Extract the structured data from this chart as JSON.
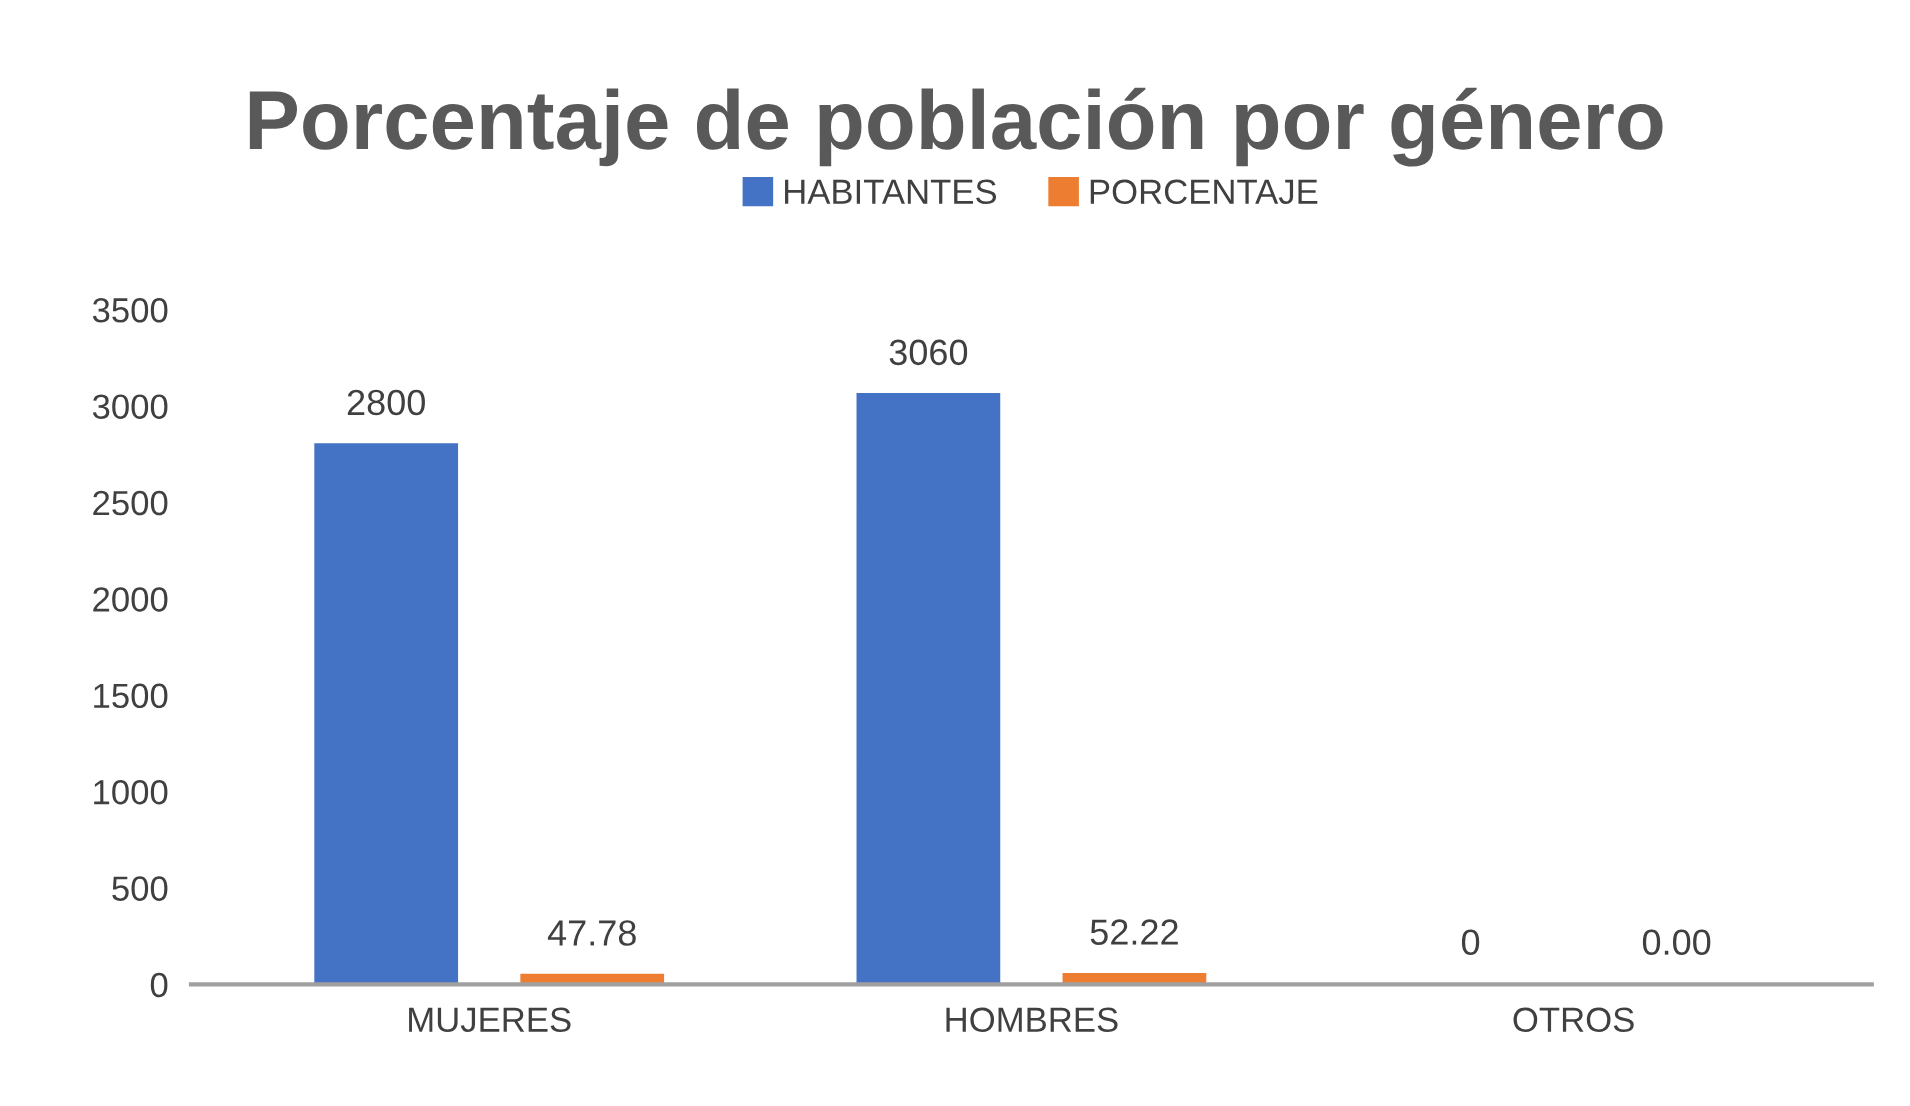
{
  "chart_data": {
    "type": "bar",
    "title": "Porcentaje de población por género",
    "categories": [
      "MUJERES",
      "HOMBRES",
      "OTROS"
    ],
    "series": [
      {
        "name": "HABITANTES",
        "color": "#4472c4",
        "values": [
          2800,
          3060,
          0
        ],
        "value_labels": [
          "2800",
          "3060",
          "0"
        ]
      },
      {
        "name": "PORCENTAJE",
        "color": "#ed7d31",
        "values": [
          47.78,
          52.22,
          0
        ],
        "value_labels": [
          "47.78",
          "52.22",
          "0.00"
        ]
      }
    ],
    "ylim": [
      0,
      3500
    ],
    "yticks": [
      0,
      500,
      1000,
      1500,
      2000,
      2500,
      3000,
      3500
    ],
    "grid": false,
    "legend": "top"
  }
}
